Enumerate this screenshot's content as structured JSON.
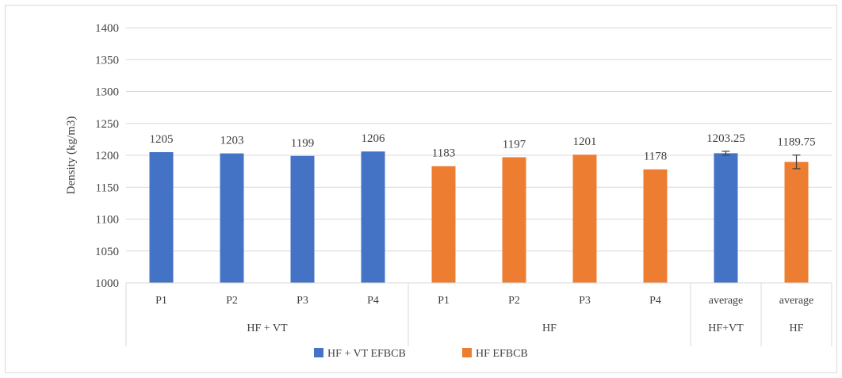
{
  "chart_data": {
    "type": "bar",
    "title": "",
    "ylabel": "Density (kg/m3)",
    "ylim": [
      1000,
      1400
    ],
    "ytick_step": 50,
    "grid": true,
    "legend_position": "bottom",
    "colors": {
      "hf_vt": "#4472C4",
      "hf": "#ED7D31",
      "grid": "#d9d9d9",
      "error": "#404040"
    },
    "groups": [
      {
        "label": "HF + VT",
        "span": 4
      },
      {
        "label": "HF",
        "span": 4
      },
      {
        "label": "HF+VT",
        "span": 1
      },
      {
        "label": "HF",
        "span": 1
      }
    ],
    "bars": [
      {
        "category": "P1",
        "value": 1205,
        "label": "1205",
        "series": "hf_vt"
      },
      {
        "category": "P2",
        "value": 1203,
        "label": "1203",
        "series": "hf_vt"
      },
      {
        "category": "P3",
        "value": 1199,
        "label": "1199",
        "series": "hf_vt"
      },
      {
        "category": "P4",
        "value": 1206,
        "label": "1206",
        "series": "hf_vt"
      },
      {
        "category": "P1",
        "value": 1183,
        "label": "1183",
        "series": "hf"
      },
      {
        "category": "P2",
        "value": 1197,
        "label": "1197",
        "series": "hf"
      },
      {
        "category": "P3",
        "value": 1201,
        "label": "1201",
        "series": "hf"
      },
      {
        "category": "P4",
        "value": 1178,
        "label": "1178",
        "series": "hf"
      },
      {
        "category": "average",
        "value": 1203.25,
        "label": "1203.25",
        "series": "hf_vt",
        "error": 3.1
      },
      {
        "category": "average",
        "value": 1189.75,
        "label": "1189.75",
        "series": "hf",
        "error": 10.7
      }
    ],
    "legend": [
      {
        "series": "hf_vt",
        "name": "HF + VT EFBCB"
      },
      {
        "series": "hf",
        "name": "HF EFBCB"
      }
    ]
  }
}
